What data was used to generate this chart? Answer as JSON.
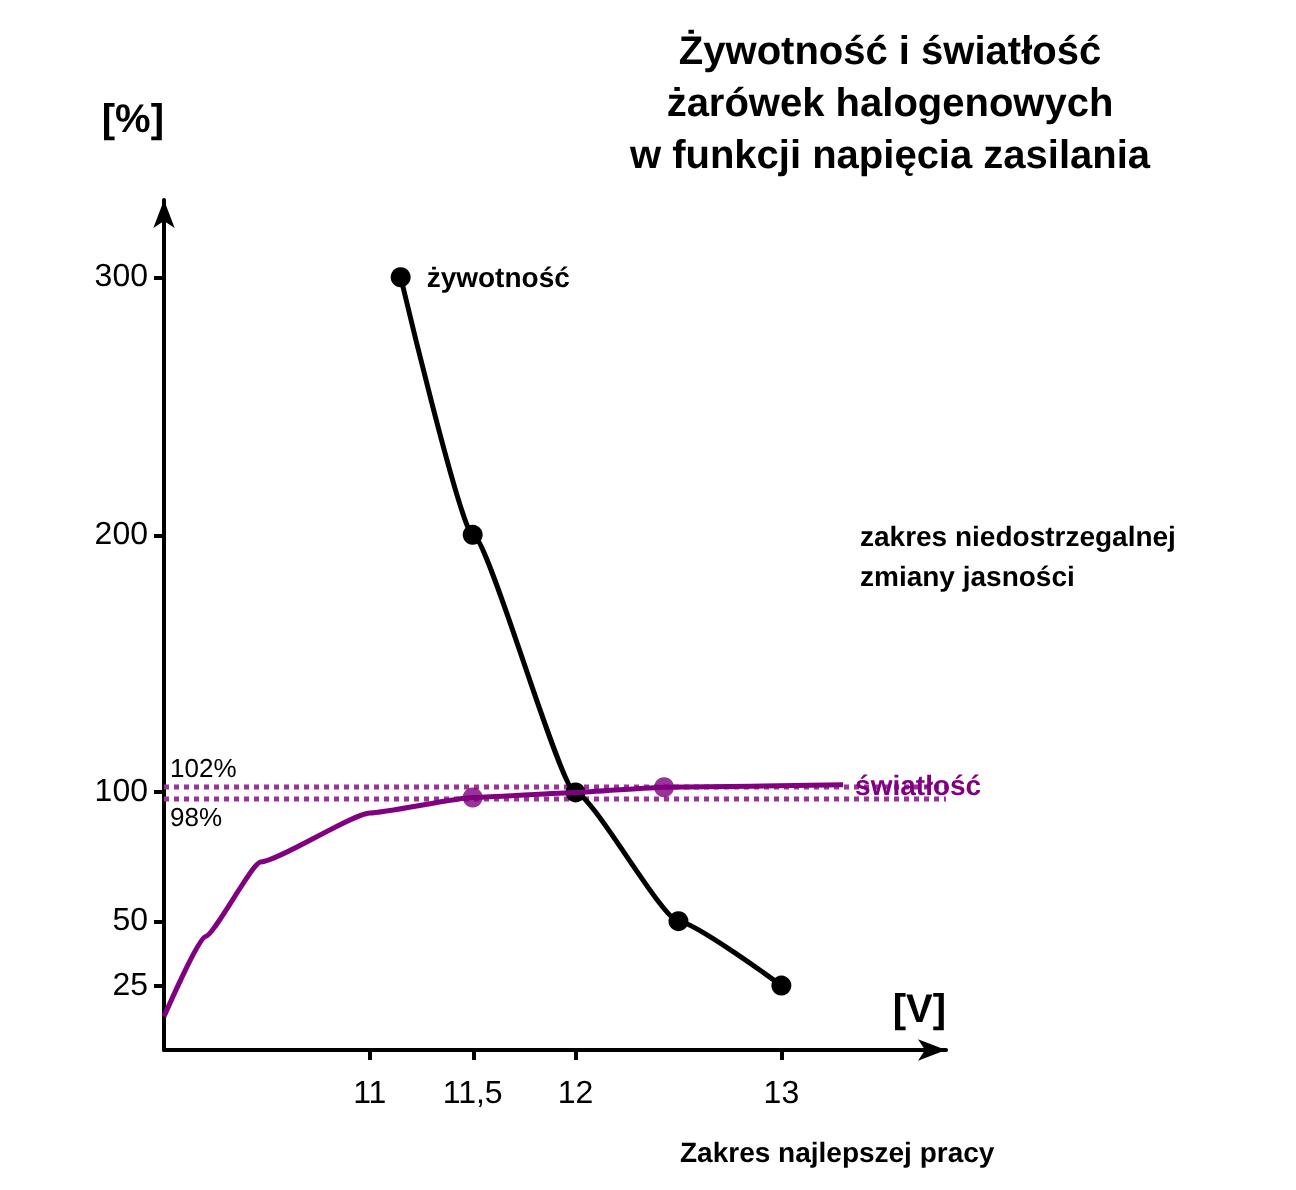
{
  "chart_data": {
    "type": "line",
    "title": "Żywotność i światłość\nżarówek halogenowych\nw funkcji napięcia zasilania",
    "xlabel": "[V]",
    "ylabel": "[%]",
    "xlim": [
      10,
      13.8
    ],
    "xticks": [
      11,
      {
        "value": 11.5,
        "label": "11,5"
      },
      12,
      13
    ],
    "ylim": [
      0,
      330
    ],
    "yticks": [
      25,
      50,
      100,
      200,
      300
    ],
    "series": [
      {
        "name": "żywotność",
        "color": "#000000",
        "marker": "circle",
        "x": [
          11.15,
          11.5,
          12,
          12.5,
          13
        ],
        "values": [
          300,
          200,
          100,
          50,
          25
        ]
      },
      {
        "name": "światłość",
        "color": "#800080",
        "marker": "none",
        "x": [
          10,
          10.2,
          10.47,
          11,
          11.5,
          12,
          12.43,
          13.3
        ],
        "values": [
          13,
          44,
          73,
          92,
          98,
          100,
          102,
          103
        ]
      },
      {
        "type": "scatter",
        "color": "#800080",
        "marker": "circle",
        "x": [
          11.5,
          12.43
        ],
        "values": [
          98,
          102
        ]
      }
    ],
    "ref_lines": [
      {
        "axis": "y",
        "value": 102,
        "label": "102%",
        "color": "#993399",
        "line_style": "dotted"
      },
      {
        "axis": "y",
        "value": 98,
        "label": "98%",
        "color": "#993399",
        "line_style": "dotted"
      }
    ],
    "annotations": [
      "zakres niedostrzegalnej zmiany jasności",
      "Zakres najlepszej pracy"
    ],
    "grid": false
  }
}
